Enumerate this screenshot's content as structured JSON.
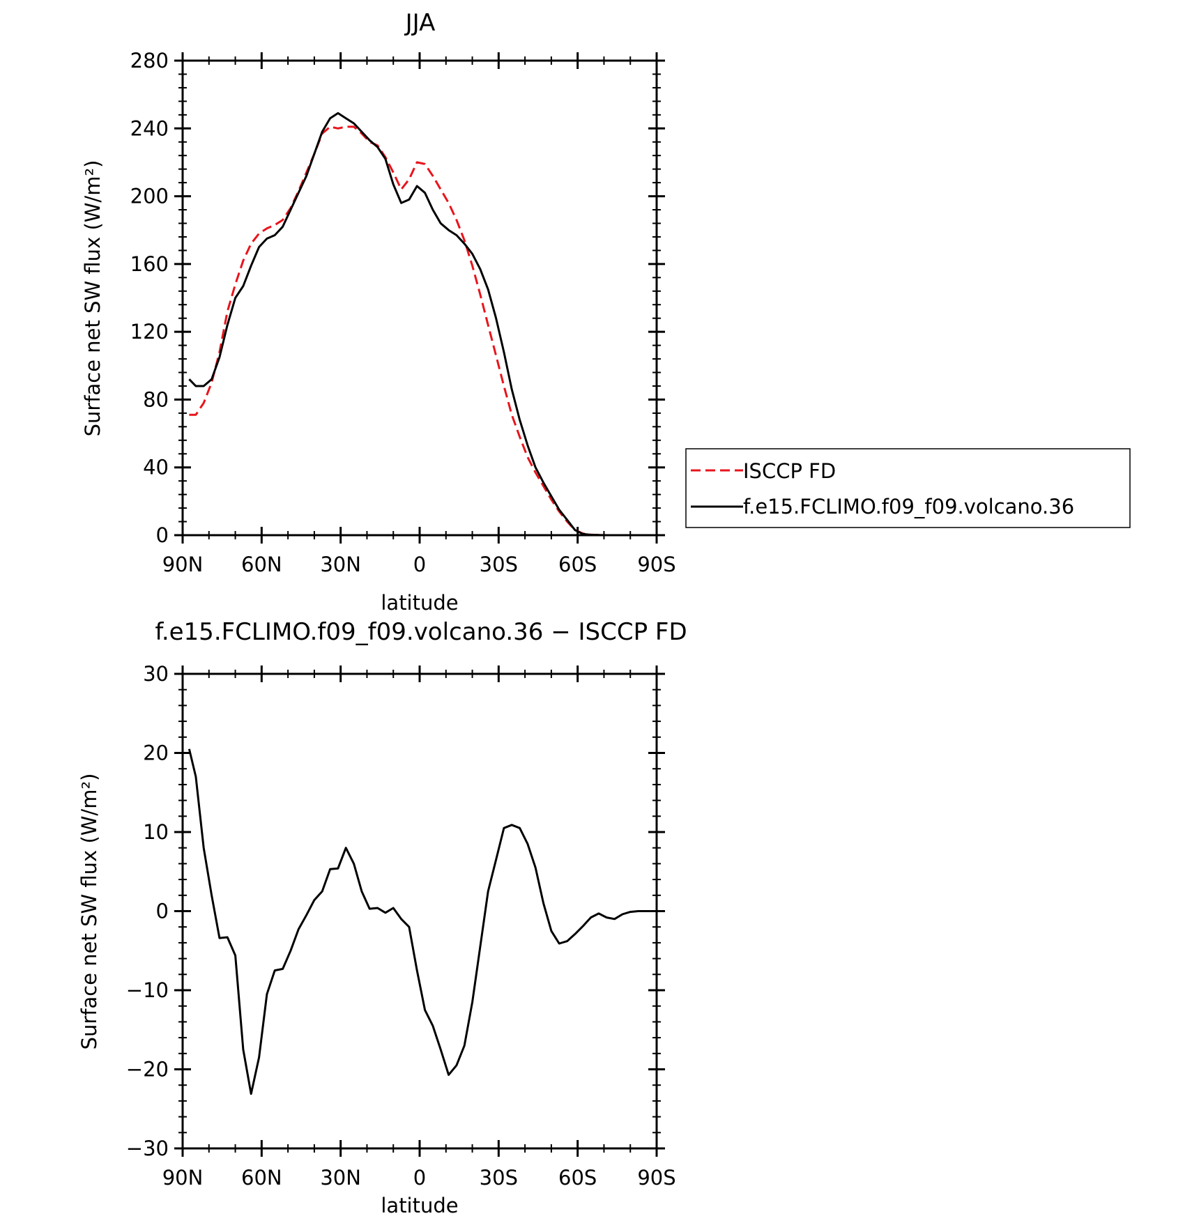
{
  "chart_data": [
    {
      "type": "line",
      "title": "JJA",
      "xlabel": "latitude",
      "ylabel": "Surface net SW flux (W/m²)",
      "ylim": [
        0,
        280
      ],
      "xlim": [
        90,
        -90
      ],
      "x_ticks": [
        {
          "value": 90,
          "label": "90N"
        },
        {
          "value": 60,
          "label": "60N"
        },
        {
          "value": 30,
          "label": "30N"
        },
        {
          "value": 0,
          "label": "0"
        },
        {
          "value": -30,
          "label": "30S"
        },
        {
          "value": -60,
          "label": "60S"
        },
        {
          "value": -90,
          "label": "90S"
        }
      ],
      "y_ticks": [
        {
          "value": 0,
          "label": "0"
        },
        {
          "value": 40,
          "label": "40"
        },
        {
          "value": 80,
          "label": "80"
        },
        {
          "value": 120,
          "label": "120"
        },
        {
          "value": 160,
          "label": "160"
        },
        {
          "value": 200,
          "label": "200"
        },
        {
          "value": 240,
          "label": "240"
        },
        {
          "value": 280,
          "label": "280"
        }
      ],
      "grid": false,
      "legend": "right, outside plot",
      "series": [
        {
          "name": "ISCCP FD",
          "color": "#e8141c",
          "dash": true,
          "x": [
            87.5,
            85,
            82,
            79,
            76,
            73,
            70,
            67,
            64,
            61,
            58,
            55,
            52,
            49,
            46,
            43,
            40,
            37,
            34,
            31,
            28,
            25,
            22,
            19,
            16,
            13,
            10,
            7,
            4,
            1,
            -2,
            -5,
            -8,
            -11,
            -14,
            -17,
            -20,
            -23,
            -26,
            -29,
            -32,
            -35,
            -38,
            -41,
            -44,
            -47,
            -50,
            -53,
            -56,
            -59,
            -62,
            -65,
            -68,
            -71,
            -74,
            -77,
            -80,
            -83,
            -87.5
          ],
          "y": [
            71,
            71,
            78,
            90,
            108,
            132,
            148,
            162,
            172,
            178,
            181,
            183,
            186,
            193,
            203,
            214,
            225,
            237,
            241,
            240,
            241,
            241,
            237,
            232,
            230,
            223,
            214,
            204,
            210,
            220,
            219,
            212,
            204,
            196,
            186,
            174,
            159,
            142,
            124,
            106,
            88,
            71,
            58,
            46,
            37,
            29,
            21,
            14,
            8,
            3,
            1,
            0.3,
            0.1,
            0,
            0,
            0,
            0,
            0,
            0
          ]
        },
        {
          "name": "f.e15.FCLIMO.f09_f09.volcano.36",
          "color": "#000000",
          "dash": false,
          "x": [
            87.5,
            85,
            82,
            79,
            76,
            73,
            70,
            67,
            64,
            61,
            58,
            55,
            52,
            49,
            46,
            43,
            40,
            37,
            34,
            31,
            28,
            25,
            22,
            19,
            16,
            13,
            10,
            7,
            4,
            1,
            -2,
            -5,
            -8,
            -11,
            -14,
            -17,
            -20,
            -23,
            -26,
            -29,
            -32,
            -35,
            -38,
            -41,
            -44,
            -47,
            -50,
            -53,
            -56,
            -59,
            -62,
            -65,
            -68,
            -71,
            -74,
            -77,
            -80,
            -83,
            -87.5
          ],
          "y": [
            92,
            88,
            88,
            92,
            105,
            124,
            140,
            147,
            159,
            170,
            175,
            177,
            182,
            192,
            202,
            212,
            225,
            238,
            246,
            249,
            246,
            243,
            238,
            233,
            229,
            222,
            207,
            196,
            198,
            206,
            202,
            192,
            184,
            180,
            177,
            172,
            166,
            157,
            145,
            128,
            108,
            86,
            68,
            53,
            40,
            31,
            23,
            15,
            9,
            3,
            0.7,
            0.2,
            0.1,
            0,
            0,
            0,
            0,
            0,
            0
          ]
        }
      ]
    },
    {
      "type": "line",
      "title": "f.e15.FCLIMO.f09_f09.volcano.36 − ISCCP FD",
      "xlabel": "latitude",
      "ylabel": "Surface net SW flux (W/m²)",
      "ylim": [
        -30,
        30
      ],
      "xlim": [
        90,
        -90
      ],
      "x_ticks": [
        {
          "value": 90,
          "label": "90N"
        },
        {
          "value": 60,
          "label": "60N"
        },
        {
          "value": 30,
          "label": "30N"
        },
        {
          "value": 0,
          "label": "0"
        },
        {
          "value": -30,
          "label": "30S"
        },
        {
          "value": -60,
          "label": "60S"
        },
        {
          "value": -90,
          "label": "90S"
        }
      ],
      "y_ticks": [
        {
          "value": -30,
          "label": "−30"
        },
        {
          "value": -20,
          "label": "−20"
        },
        {
          "value": -10,
          "label": "−10"
        },
        {
          "value": 0,
          "label": "0"
        },
        {
          "value": 10,
          "label": "10"
        },
        {
          "value": 20,
          "label": "20"
        },
        {
          "value": 30,
          "label": "30"
        }
      ],
      "grid": false,
      "series": [
        {
          "color": "#000000",
          "dash": false,
          "x": [
            87.5,
            85,
            82,
            79,
            76,
            73,
            70,
            67,
            64,
            61,
            58,
            55,
            52,
            49,
            46,
            43,
            40,
            37,
            34,
            31,
            28,
            25,
            22,
            19,
            16,
            13,
            10,
            7,
            4,
            1,
            -2,
            -5,
            -8,
            -11,
            -14,
            -17,
            -20,
            -23,
            -26,
            -29,
            -32,
            -35,
            -38,
            -41,
            -44,
            -47,
            -50,
            -53,
            -56,
            -59,
            -62,
            -65,
            -68,
            -71,
            -74,
            -77,
            -80,
            -83,
            -87.5
          ],
          "y": [
            20.5,
            17,
            8,
            2,
            -3.4,
            -3.3,
            -5.6,
            -17.5,
            -23.1,
            -18.5,
            -10.5,
            -7.5,
            -7.3,
            -5,
            -2.3,
            -0.5,
            1.4,
            2.5,
            5.3,
            5.4,
            8,
            6,
            2.5,
            0.3,
            0.4,
            -0.2,
            0.4,
            -1,
            -2,
            -7.5,
            -12.5,
            -14.5,
            -17.5,
            -20.7,
            -19.5,
            -17,
            -11.5,
            -4.5,
            2.5,
            6.5,
            10.5,
            10.9,
            10.5,
            8.5,
            5.5,
            1,
            -2.5,
            -4.1,
            -3.8,
            -2.9,
            -1.9,
            -0.8,
            -0.3,
            -0.8,
            -1,
            -0.4,
            -0.1,
            0,
            0
          ]
        }
      ]
    }
  ]
}
